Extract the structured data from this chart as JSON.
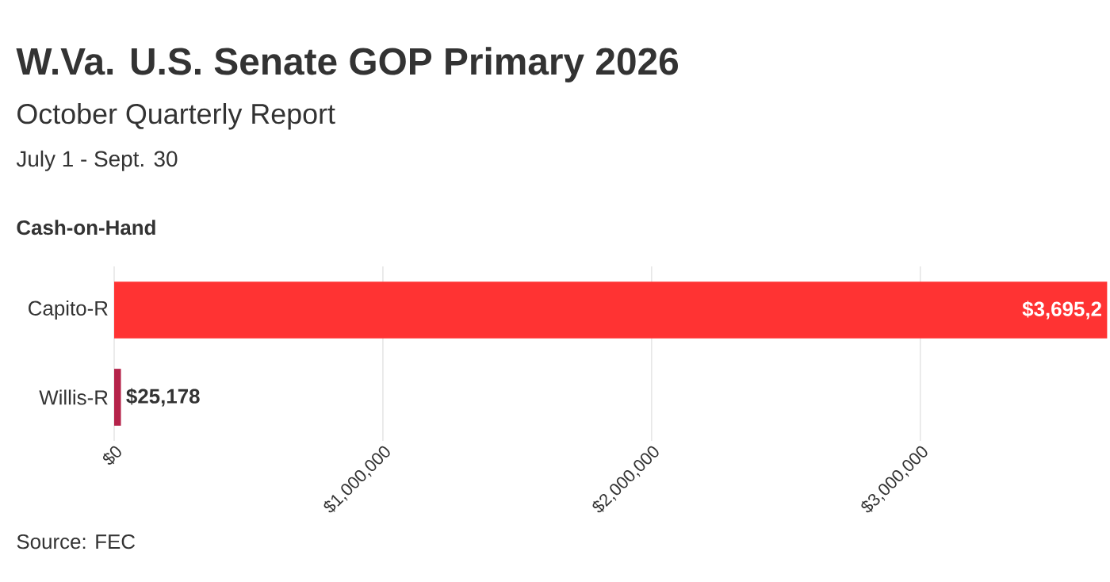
{
  "chart_data": {
    "type": "bar",
    "orientation": "horizontal",
    "title": "W.Va. U.S. Senate GOP Primary 2026",
    "subtitle": "October Quarterly Report",
    "annotations": [
      "July 1 - Sept. 30",
      "Cash-on-Hand",
      "Source: FEC"
    ],
    "categories": [
      "Capito-R",
      "Willis-R"
    ],
    "values": [
      3695200,
      25178
    ],
    "colors": [
      "#ff3333",
      "#b5234a"
    ],
    "value_labels": [
      "$3,695,2",
      "$25,178"
    ],
    "xlim": [
      0,
      3700000
    ],
    "xticks": [
      {
        "value": 0,
        "label": "$0"
      },
      {
        "value": 1000000,
        "label": "$1,000,000"
      },
      {
        "value": 2000000,
        "label": "$2,000,000"
      },
      {
        "value": 3000000,
        "label": "$3,000,000"
      }
    ],
    "grid": "x"
  }
}
